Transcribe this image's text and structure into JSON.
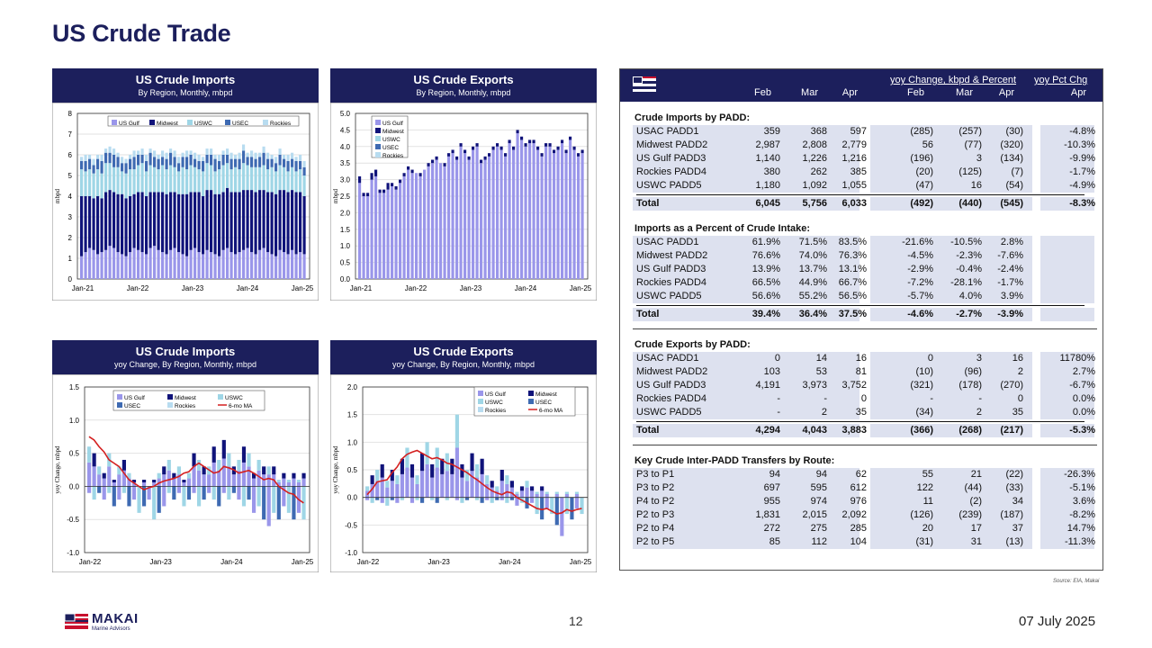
{
  "title": "US Crude Trade",
  "footer": {
    "company": "MAKAI",
    "subtitle": "Marine Advisors",
    "page": "12",
    "date": "07 July 2025",
    "source": "Source: EIA, Makai"
  },
  "colors": {
    "navy": "#1c1f5c",
    "usgulf": "#9a96ea",
    "midwest": "#10137a",
    "uswc": "#9fd6e6",
    "usec": "#3e6ab2",
    "rockies": "#b8dcf0",
    "ma": "#d42020"
  },
  "chart_data": [
    {
      "type": "bar",
      "id": "imports",
      "title": "US Crude Imports",
      "subtitle": "By Region, Monthly, mbpd",
      "ylabel": "mbpd",
      "ylim": [
        0,
        8
      ],
      "yticks": [
        0,
        1,
        2,
        3,
        4,
        5,
        6,
        7,
        8
      ],
      "xticks": [
        "Jan-21",
        "Jan-22",
        "Jan-23",
        "Jan-24",
        "Jan-25"
      ],
      "series": [
        {
          "name": "US Gulf"
        },
        {
          "name": "Midwest"
        },
        {
          "name": "USWC"
        },
        {
          "name": "USEC"
        },
        {
          "name": "Rockies"
        }
      ],
      "usgulf": [
        1.1,
        1.3,
        1.5,
        1.4,
        1.2,
        1.3,
        1.4,
        1.6,
        1.5,
        1.3,
        1.2,
        1.1,
        1.3,
        1.5,
        1.4,
        1.3,
        1.2,
        1.5,
        1.6,
        1.4,
        1.3,
        1.2,
        1.4,
        1.5,
        1.3,
        1.2,
        1.1,
        1.4,
        1.5,
        1.3,
        1.2,
        1.4,
        1.3,
        1.2,
        1.1,
        1.4,
        1.5,
        1.3,
        1.2,
        1.3,
        1.4,
        1.5,
        1.3,
        1.2,
        1.4,
        1.5,
        1.3,
        1.2,
        1.1,
        1.4,
        1.3,
        1.2,
        1.4,
        1.2,
        1.3,
        1.2
      ],
      "midwest": [
        2.9,
        2.7,
        2.5,
        2.5,
        2.8,
        2.6,
        2.8,
        2.7,
        2.7,
        2.8,
        2.9,
        2.8,
        2.7,
        2.6,
        2.8,
        2.9,
        2.8,
        2.7,
        2.6,
        2.8,
        2.9,
        2.9,
        2.8,
        2.7,
        2.8,
        2.9,
        3.0,
        2.8,
        2.7,
        2.9,
        2.8,
        2.9,
        3.0,
        2.9,
        3.0,
        2.8,
        2.9,
        2.9,
        3.0,
        2.9,
        2.9,
        2.8,
        3.0,
        3.0,
        2.9,
        2.8,
        2.9,
        3.0,
        3.0,
        2.9,
        3.0,
        3.0,
        2.9,
        3.0,
        2.9,
        2.8
      ],
      "uswc": [
        1.3,
        1.2,
        1.3,
        1.2,
        1.3,
        1.2,
        1.4,
        1.3,
        1.2,
        1.3,
        1.1,
        1.2,
        1.3,
        1.2,
        1.3,
        1.4,
        1.2,
        1.3,
        1.2,
        1.1,
        1.3,
        1.2,
        1.3,
        1.2,
        1.1,
        1.3,
        1.2,
        1.3,
        1.2,
        1.1,
        1.2,
        1.3,
        1.2,
        1.1,
        1.2,
        1.3,
        1.2,
        1.1,
        1.2,
        1.1,
        1.3,
        1.2,
        1.1,
        1.2,
        1.1,
        1.2,
        1.1,
        1.2,
        1.1,
        1.2,
        1.1,
        1.0,
        1.1,
        1.0,
        1.1,
        1.0
      ],
      "usec": [
        0.4,
        0.5,
        0.5,
        0.4,
        0.5,
        0.6,
        0.5,
        0.5,
        0.6,
        0.5,
        0.4,
        0.5,
        0.5,
        0.6,
        0.5,
        0.4,
        0.5,
        0.6,
        0.5,
        0.5,
        0.4,
        0.5,
        0.6,
        0.5,
        0.4,
        0.5,
        0.6,
        0.5,
        0.4,
        0.4,
        0.5,
        0.4,
        0.5,
        0.6,
        0.4,
        0.5,
        0.4,
        0.5,
        0.4,
        0.5,
        0.6,
        0.4,
        0.5,
        0.4,
        0.5,
        0.6,
        0.5,
        0.4,
        0.4,
        0.5,
        0.4,
        0.5,
        0.4,
        0.5,
        0.4,
        0.4
      ],
      "rockies": [
        0.2,
        0.3,
        0.2,
        0.3,
        0.2,
        0.3,
        0.2,
        0.3,
        0.3,
        0.2,
        0.3,
        0.2,
        0.2,
        0.3,
        0.2,
        0.3,
        0.3,
        0.2,
        0.3,
        0.2,
        0.3,
        0.3,
        0.2,
        0.3,
        0.3,
        0.2,
        0.3,
        0.2,
        0.3,
        0.3,
        0.2,
        0.3,
        0.3,
        0.2,
        0.3,
        0.2,
        0.3,
        0.3,
        0.2,
        0.3,
        0.3,
        0.2,
        0.3,
        0.3,
        0.2,
        0.3,
        0.3,
        0.2,
        0.3,
        0.3,
        0.2,
        0.3,
        0.3,
        0.2,
        0.3,
        0.3
      ]
    },
    {
      "type": "bar",
      "id": "exports",
      "title": "US Crude Exports",
      "subtitle": "By Region, Monthly, mbpd",
      "ylabel": "mbpd",
      "ylim": [
        0,
        5
      ],
      "yticks": [
        "0.0",
        "0.5",
        "1.0",
        "1.5",
        "2.0",
        "2.5",
        "3.0",
        "3.5",
        "4.0",
        "4.5",
        "5.0"
      ],
      "xticks": [
        "Jan-21",
        "Jan-22",
        "Jan-23",
        "Jan-24",
        "Jan-25"
      ],
      "series": [
        {
          "name": "US Gulf"
        },
        {
          "name": "Midwest"
        },
        {
          "name": "USWC"
        },
        {
          "name": "USEC"
        },
        {
          "name": "Rockies"
        }
      ],
      "usgulf": [
        2.9,
        2.5,
        2.5,
        3.0,
        3.1,
        2.6,
        2.6,
        2.7,
        2.8,
        2.7,
        2.9,
        3.1,
        3.3,
        3.2,
        3.2,
        3.1,
        3.3,
        3.4,
        3.5,
        3.6,
        3.5,
        3.4,
        3.7,
        3.8,
        3.6,
        4.0,
        3.8,
        3.6,
        3.9,
        4.0,
        3.5,
        3.6,
        3.7,
        3.9,
        4.0,
        3.9,
        3.7,
        4.1,
        3.9,
        4.4,
        4.2,
        4.0,
        4.1,
        4.1,
        3.9,
        3.7,
        4.0,
        4.0,
        3.8,
        3.9,
        4.1,
        3.8,
        4.2,
        3.9,
        3.7,
        3.8
      ],
      "midwest": [
        0.2,
        0.1,
        0.1,
        0.2,
        0.2,
        0.1,
        0.1,
        0.2,
        0.1,
        0.1,
        0.1,
        0.1,
        0.1,
        0.1,
        0.0,
        0.1,
        0.0,
        0.1,
        0.1,
        0.1,
        0.0,
        0.1,
        0.1,
        0.1,
        0.1,
        0.1,
        0.1,
        0.1,
        0.1,
        0.1,
        0.1,
        0.1,
        0.1,
        0.1,
        0.1,
        0.1,
        0.1,
        0.1,
        0.1,
        0.1,
        0.1,
        0.1,
        0.1,
        0.1,
        0.1,
        0.1,
        0.1,
        0.1,
        0.1,
        0.1,
        0.1,
        0.1,
        0.1,
        0.1,
        0.1,
        0.1
      ]
    },
    {
      "type": "bar",
      "id": "impyoy",
      "title": "US Crude Imports",
      "subtitle": "yoy Change, By Region, Monthly, mbpd",
      "ylabel": "yoy Change, mbpd",
      "ylim": [
        -1,
        1.5
      ],
      "yticks": [
        "-1.0",
        "-0.5",
        "0.0",
        "0.5",
        "1.0",
        "1.5"
      ],
      "xticks": [
        "Jan-22",
        "Jan-23",
        "Jan-24",
        "Jan-25"
      ],
      "series": [
        {
          "name": "US Gulf"
        },
        {
          "name": "Midwest"
        },
        {
          "name": "USWC"
        },
        {
          "name": "USEC"
        },
        {
          "name": "Rockies"
        },
        {
          "name": "6-mo MA"
        }
      ],
      "pos": [
        0.6,
        0.5,
        0.3,
        0.2,
        0.5,
        0.1,
        0.3,
        0.4,
        0.2,
        0.1,
        0.0,
        0.1,
        0.0,
        0.1,
        0.2,
        0.3,
        0.4,
        0.2,
        0.3,
        0.1,
        0.2,
        0.5,
        0.4,
        0.3,
        0.3,
        0.6,
        0.4,
        0.7,
        0.5,
        0.3,
        0.4,
        0.6,
        0.5,
        0.2,
        0.4,
        0.3,
        0.3,
        0.3,
        0.1,
        0.2,
        0.1,
        0.2,
        0.1,
        0.2
      ],
      "neg": [
        -0.1,
        -0.2,
        -0.1,
        -0.2,
        -0.1,
        -0.3,
        -0.2,
        -0.1,
        -0.3,
        -0.2,
        -0.4,
        -0.3,
        -0.2,
        -0.5,
        -0.4,
        -0.3,
        -0.1,
        -0.2,
        -0.1,
        -0.3,
        -0.2,
        -0.1,
        -0.3,
        -0.2,
        -0.1,
        -0.2,
        -0.3,
        -0.1,
        -0.2,
        -0.1,
        -0.2,
        -0.3,
        -0.2,
        -0.4,
        -0.3,
        -0.5,
        -0.6,
        -0.4,
        -0.5,
        -0.3,
        -0.4,
        -0.5,
        -0.4,
        -0.5
      ],
      "ma": [
        0.75,
        0.7,
        0.6,
        0.52,
        0.4,
        0.35,
        0.3,
        0.2,
        0.1,
        0.05,
        0.0,
        -0.05,
        -0.02,
        0.0,
        0.05,
        0.08,
        0.1,
        0.12,
        0.15,
        0.2,
        0.22,
        0.3,
        0.35,
        0.3,
        0.25,
        0.2,
        0.22,
        0.3,
        0.28,
        0.25,
        0.2,
        0.22,
        0.24,
        0.2,
        0.15,
        0.1,
        0.12,
        0.1,
        0.0,
        -0.05,
        -0.1,
        -0.12,
        -0.2,
        -0.25
      ]
    },
    {
      "type": "bar",
      "id": "expyoy",
      "title": "US Crude Exports",
      "subtitle": "yoy Change, By Region, Monthly, mbpd",
      "ylabel": "yoy Change, mbpd",
      "ylim": [
        -1,
        2
      ],
      "yticks": [
        "-1.0",
        "-0.5",
        "0.0",
        "0.5",
        "1.0",
        "1.5",
        "2.0"
      ],
      "xticks": [
        "Jan-22",
        "Jan-23",
        "Jan-24",
        "Jan-25"
      ],
      "series": [
        {
          "name": "US Gulf"
        },
        {
          "name": "Midwest"
        },
        {
          "name": "USWC"
        },
        {
          "name": "USEC"
        },
        {
          "name": "Rockies"
        },
        {
          "name": "6-mo MA"
        }
      ],
      "pos": [
        0.2,
        0.4,
        0.5,
        0.6,
        0.3,
        0.5,
        0.4,
        0.7,
        0.9,
        0.6,
        0.4,
        0.8,
        1.0,
        0.6,
        0.9,
        0.7,
        0.8,
        0.7,
        1.5,
        0.6,
        0.5,
        0.8,
        0.6,
        0.7,
        0.4,
        0.3,
        0.2,
        0.5,
        0.4,
        0.3,
        0.1,
        0.2,
        0.3,
        0.2,
        0.1,
        0.2,
        0.1,
        0.0,
        0.1,
        0.0,
        0.1,
        0.0,
        0.1,
        0.0
      ],
      "neg": [
        -0.05,
        -0.1,
        -0.05,
        -0.1,
        -0.15,
        -0.05,
        -0.1,
        -0.05,
        0,
        -0.1,
        -0.05,
        -0.1,
        0,
        -0.05,
        -0.1,
        0,
        -0.05,
        0,
        -0.05,
        -0.1,
        -0.05,
        0,
        -0.05,
        -0.1,
        -0.05,
        -0.1,
        -0.05,
        -0.05,
        -0.1,
        -0.05,
        -0.15,
        -0.1,
        -0.2,
        -0.1,
        -0.3,
        -0.4,
        -0.2,
        -0.3,
        -0.5,
        -0.7,
        -0.3,
        -0.4,
        -0.2,
        -0.3
      ],
      "ma": [
        0.05,
        0.15,
        0.28,
        0.3,
        0.32,
        0.45,
        0.55,
        0.7,
        0.78,
        0.82,
        0.85,
        0.8,
        0.75,
        0.7,
        0.72,
        0.68,
        0.62,
        0.6,
        0.55,
        0.5,
        0.45,
        0.38,
        0.32,
        0.25,
        0.18,
        0.12,
        0.08,
        0.05,
        0.1,
        0.08,
        0.0,
        -0.05,
        -0.1,
        -0.15,
        -0.2,
        -0.22,
        -0.2,
        -0.25,
        -0.3,
        -0.28,
        -0.22,
        -0.25,
        -0.22,
        -0.2
      ]
    },
    {
      "type": "table",
      "id": "trade-table",
      "header": {
        "group1": "yoy Change, kbpd & Percent",
        "group2": "yoy Pct Chg",
        "cols": [
          "Feb",
          "Mar",
          "Apr",
          "Feb",
          "Mar",
          "Apr",
          "Apr"
        ]
      },
      "sections": [
        {
          "title": "Crude Imports by PADD:",
          "rows": [
            [
              "USAC PADD1",
              "359",
              "368",
              "597",
              "(285)",
              "(257)",
              "(30)",
              "-4.8%"
            ],
            [
              "Midwest PADD2",
              "2,987",
              "2,808",
              "2,779",
              "56",
              "(77)",
              "(320)",
              "-10.3%"
            ],
            [
              "US Gulf PADD3",
              "1,140",
              "1,226",
              "1,216",
              "(196)",
              "3",
              "(134)",
              "-9.9%"
            ],
            [
              "Rockies PADD4",
              "380",
              "262",
              "385",
              "(20)",
              "(125)",
              "(7)",
              "-1.7%"
            ],
            [
              "USWC PADD5",
              "1,180",
              "1,092",
              "1,055",
              "(47)",
              "16",
              "(54)",
              "-4.9%"
            ]
          ],
          "total": [
            "Total",
            "6,045",
            "5,756",
            "6,033",
            "(492)",
            "(440)",
            "(545)",
            "-8.3%"
          ]
        },
        {
          "title": "Imports as a Percent of Crude Intake:",
          "rows": [
            [
              "USAC PADD1",
              "61.9%",
              "71.5%",
              "83.5%",
              "-21.6%",
              "-10.5%",
              "2.8%",
              ""
            ],
            [
              "Midwest PADD2",
              "76.6%",
              "74.0%",
              "76.3%",
              "-4.5%",
              "-2.3%",
              "-7.6%",
              ""
            ],
            [
              "US Gulf PADD3",
              "13.9%",
              "13.7%",
              "13.1%",
              "-2.9%",
              "-0.4%",
              "-2.4%",
              ""
            ],
            [
              "Rockies PADD4",
              "66.5%",
              "44.9%",
              "66.7%",
              "-7.2%",
              "-28.1%",
              "-1.7%",
              ""
            ],
            [
              "USWC PADD5",
              "56.6%",
              "55.2%",
              "56.5%",
              "-5.7%",
              "4.0%",
              "3.9%",
              ""
            ]
          ],
          "total": [
            "Total",
            "39.4%",
            "36.4%",
            "37.5%",
            "-4.6%",
            "-2.7%",
            "-3.9%",
            ""
          ]
        },
        {
          "title": "Crude Exports by PADD:",
          "rows": [
            [
              "USAC PADD1",
              "0",
              "14",
              "16",
              "0",
              "3",
              "16",
              "11780%"
            ],
            [
              "Midwest PADD2",
              "103",
              "53",
              "81",
              "(10)",
              "(96)",
              "2",
              "2.7%"
            ],
            [
              "US Gulf PADD3",
              "4,191",
              "3,973",
              "3,752",
              "(321)",
              "(178)",
              "(270)",
              "-6.7%"
            ],
            [
              "Rockies PADD4",
              "-",
              "-",
              "0",
              "-",
              "-",
              "0",
              "0.0%"
            ],
            [
              "USWC PADD5",
              "-",
              "2",
              "35",
              "(34)",
              "2",
              "35",
              "0.0%"
            ]
          ],
          "total": [
            "Total",
            "4,294",
            "4,043",
            "3,883",
            "(366)",
            "(268)",
            "(217)",
            "-5.3%"
          ]
        },
        {
          "title": "Key Crude Inter-PADD Transfers by Route:",
          "rows": [
            [
              "P3 to P1",
              "94",
              "94",
              "62",
              "55",
              "21",
              "(22)",
              "-26.3%"
            ],
            [
              "P3 to P2",
              "697",
              "595",
              "612",
              "122",
              "(44)",
              "(33)",
              "-5.1%"
            ],
            [
              "P4 to P2",
              "955",
              "974",
              "976",
              "11",
              "(2)",
              "34",
              "3.6%"
            ],
            [
              "P2 to P3",
              "1,831",
              "2,015",
              "2,092",
              "(126)",
              "(239)",
              "(187)",
              "-8.2%"
            ],
            [
              "P2 to P4",
              "272",
              "275",
              "285",
              "20",
              "17",
              "37",
              "14.7%"
            ],
            [
              "P2 to P5",
              "85",
              "112",
              "104",
              "(31)",
              "31",
              "(13)",
              "-11.3%"
            ]
          ]
        }
      ]
    }
  ]
}
